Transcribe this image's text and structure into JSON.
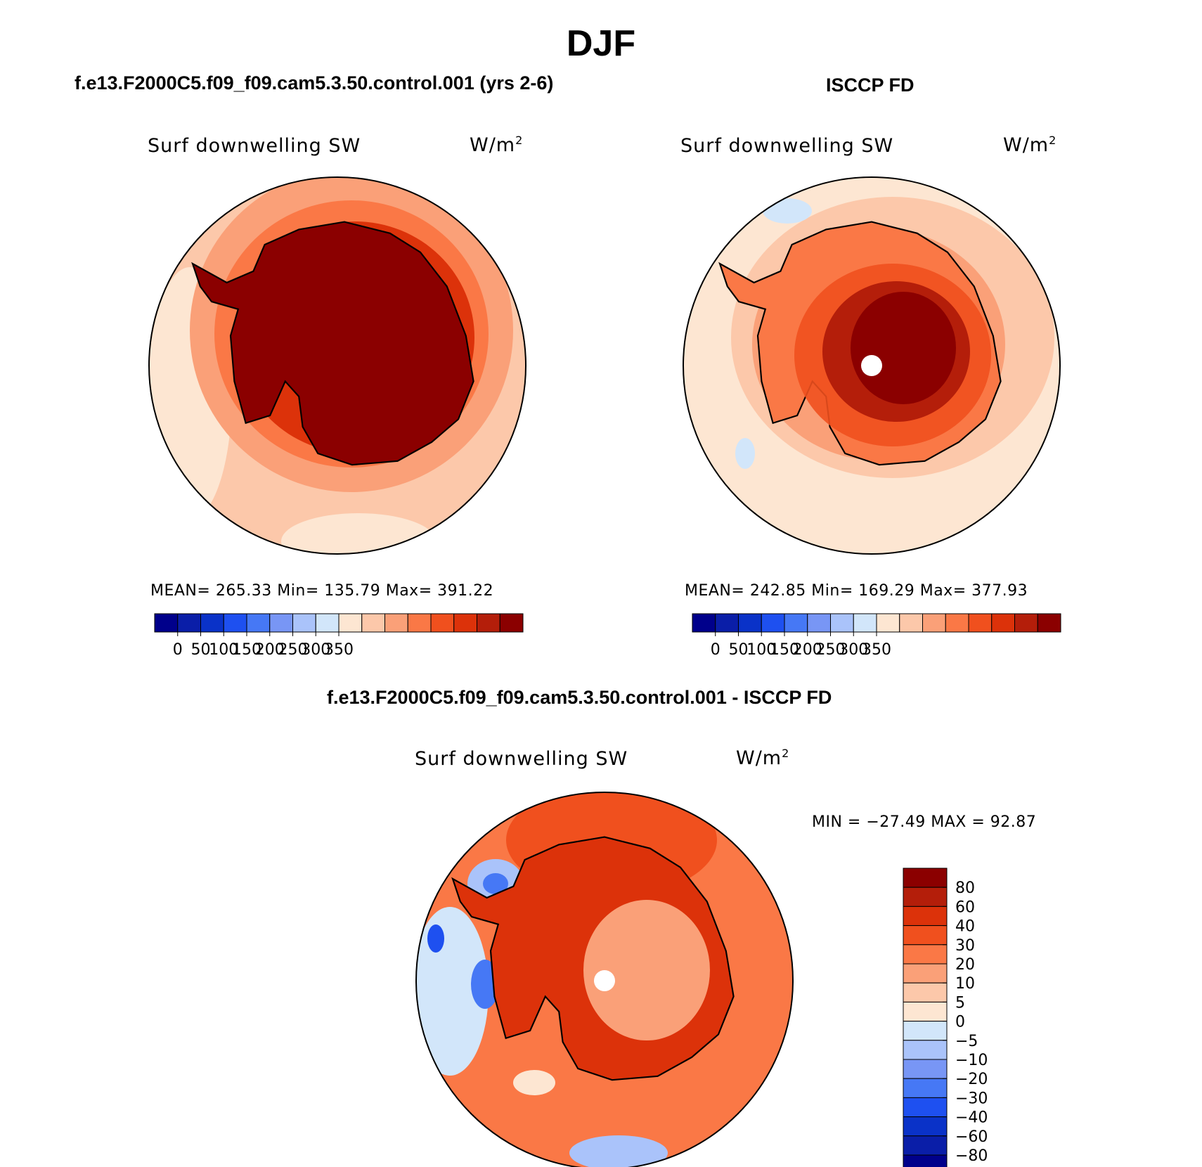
{
  "main_title": "DJF",
  "panels": {
    "model": {
      "title": "f.e13.F2000C5.f09_f09.cam5.3.50.control.001 (yrs 2-6)",
      "var_label": "Surf downwelling SW",
      "units_base": "W/m",
      "units_exp": "2",
      "stats": "MEAN= 265.33   Min= 135.79   Max= 391.22"
    },
    "obs": {
      "title": "ISCCP FD",
      "var_label": "Surf downwelling SW",
      "units_base": "W/m",
      "units_exp": "2",
      "stats": "MEAN= 242.85   Min= 169.29   Max= 377.93"
    },
    "diff": {
      "title": "f.e13.F2000C5.f09_f09.cam5.3.50.control.001 - ISCCP FD",
      "var_label": "Surf downwelling SW",
      "units_base": "W/m",
      "units_exp": "2",
      "stats": "MIN = −27.49 MAX =   92.87"
    }
  },
  "abs_colorbar": {
    "ticks": [
      "0",
      "50",
      "100",
      "150",
      "200",
      "250",
      "300",
      "350"
    ],
    "colors": [
      "#00008b",
      "#0a1ea8",
      "#0a32c8",
      "#1e50f0",
      "#4678f5",
      "#7896f5",
      "#aac3fa",
      "#d2e6fa",
      "#fde6d2",
      "#fcc8aa",
      "#faa078",
      "#fa7846",
      "#f0501e",
      "#dc320a",
      "#b41e0a",
      "#8b0000"
    ]
  },
  "diff_colorbar": {
    "labels": [
      "80",
      "60",
      "40",
      "30",
      "20",
      "10",
      "5",
      "0",
      "−5",
      "−10",
      "−20",
      "−30",
      "−40",
      "−60",
      "−80"
    ],
    "colors": [
      "#8b0000",
      "#b41e0a",
      "#dc320a",
      "#f0501e",
      "#fa7846",
      "#faa078",
      "#fcc8aa",
      "#fde6d2",
      "#d2e6fa",
      "#aac3fa",
      "#7896f5",
      "#4678f5",
      "#1e50f0",
      "#0a32c8",
      "#0a1ea8",
      "#00008b"
    ]
  },
  "colors": {
    "deep_red": "#8b0000",
    "ocean_light": "#fcc8aa",
    "ocean_pale": "#fde6d2",
    "coast": "#000000"
  }
}
